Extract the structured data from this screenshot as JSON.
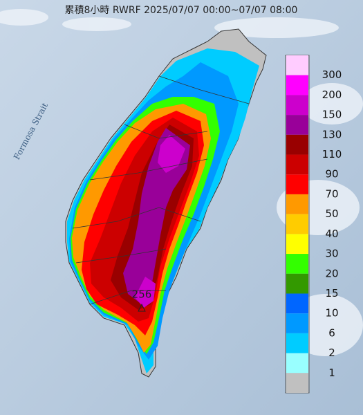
{
  "header": {
    "title": "累積8小時 RWRF 2025/07/07 00:00~07/07 08:00"
  },
  "map": {
    "sea_label": "Formosa Strait",
    "max_label": "256"
  },
  "legend": {
    "colors": [
      "#ffccff",
      "#ff00ff",
      "#cc00cc",
      "#990099",
      "#990000",
      "#cc0000",
      "#ff0000",
      "#ff9900",
      "#ffcc00",
      "#ffff00",
      "#33ff00",
      "#339900",
      "#0066ff",
      "#0099ff",
      "#00ccff",
      "#99ffff",
      "#c0c0c0"
    ],
    "labels": [
      300,
      200,
      150,
      130,
      110,
      90,
      70,
      50,
      40,
      30,
      20,
      15,
      10,
      6,
      2,
      1
    ]
  }
}
